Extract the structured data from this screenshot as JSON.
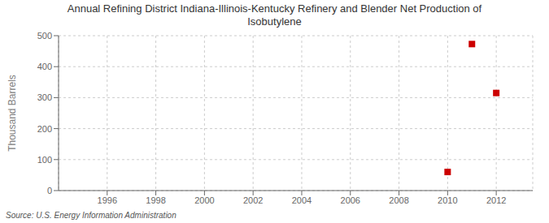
{
  "chart_data": {
    "type": "scatter",
    "title": "Annual Refining District Indiana-Illinois-Kentucky Refinery and Blender Net Production of\nIsobutylene",
    "ylabel": "Thousand Barrels",
    "source": "Source: U.S. Energy Information Administration",
    "x": [
      2010,
      2011,
      2012
    ],
    "values": [
      60,
      473,
      315
    ],
    "color": "#cc0000",
    "marker": "square",
    "xlim": [
      1994.0,
      2013.5
    ],
    "xticks": [
      1996,
      1998,
      2000,
      2002,
      2004,
      2006,
      2008,
      2010,
      2012
    ],
    "ylim": [
      0,
      500
    ],
    "yticks": [
      0,
      100,
      200,
      300,
      400,
      500
    ],
    "grid": true
  }
}
